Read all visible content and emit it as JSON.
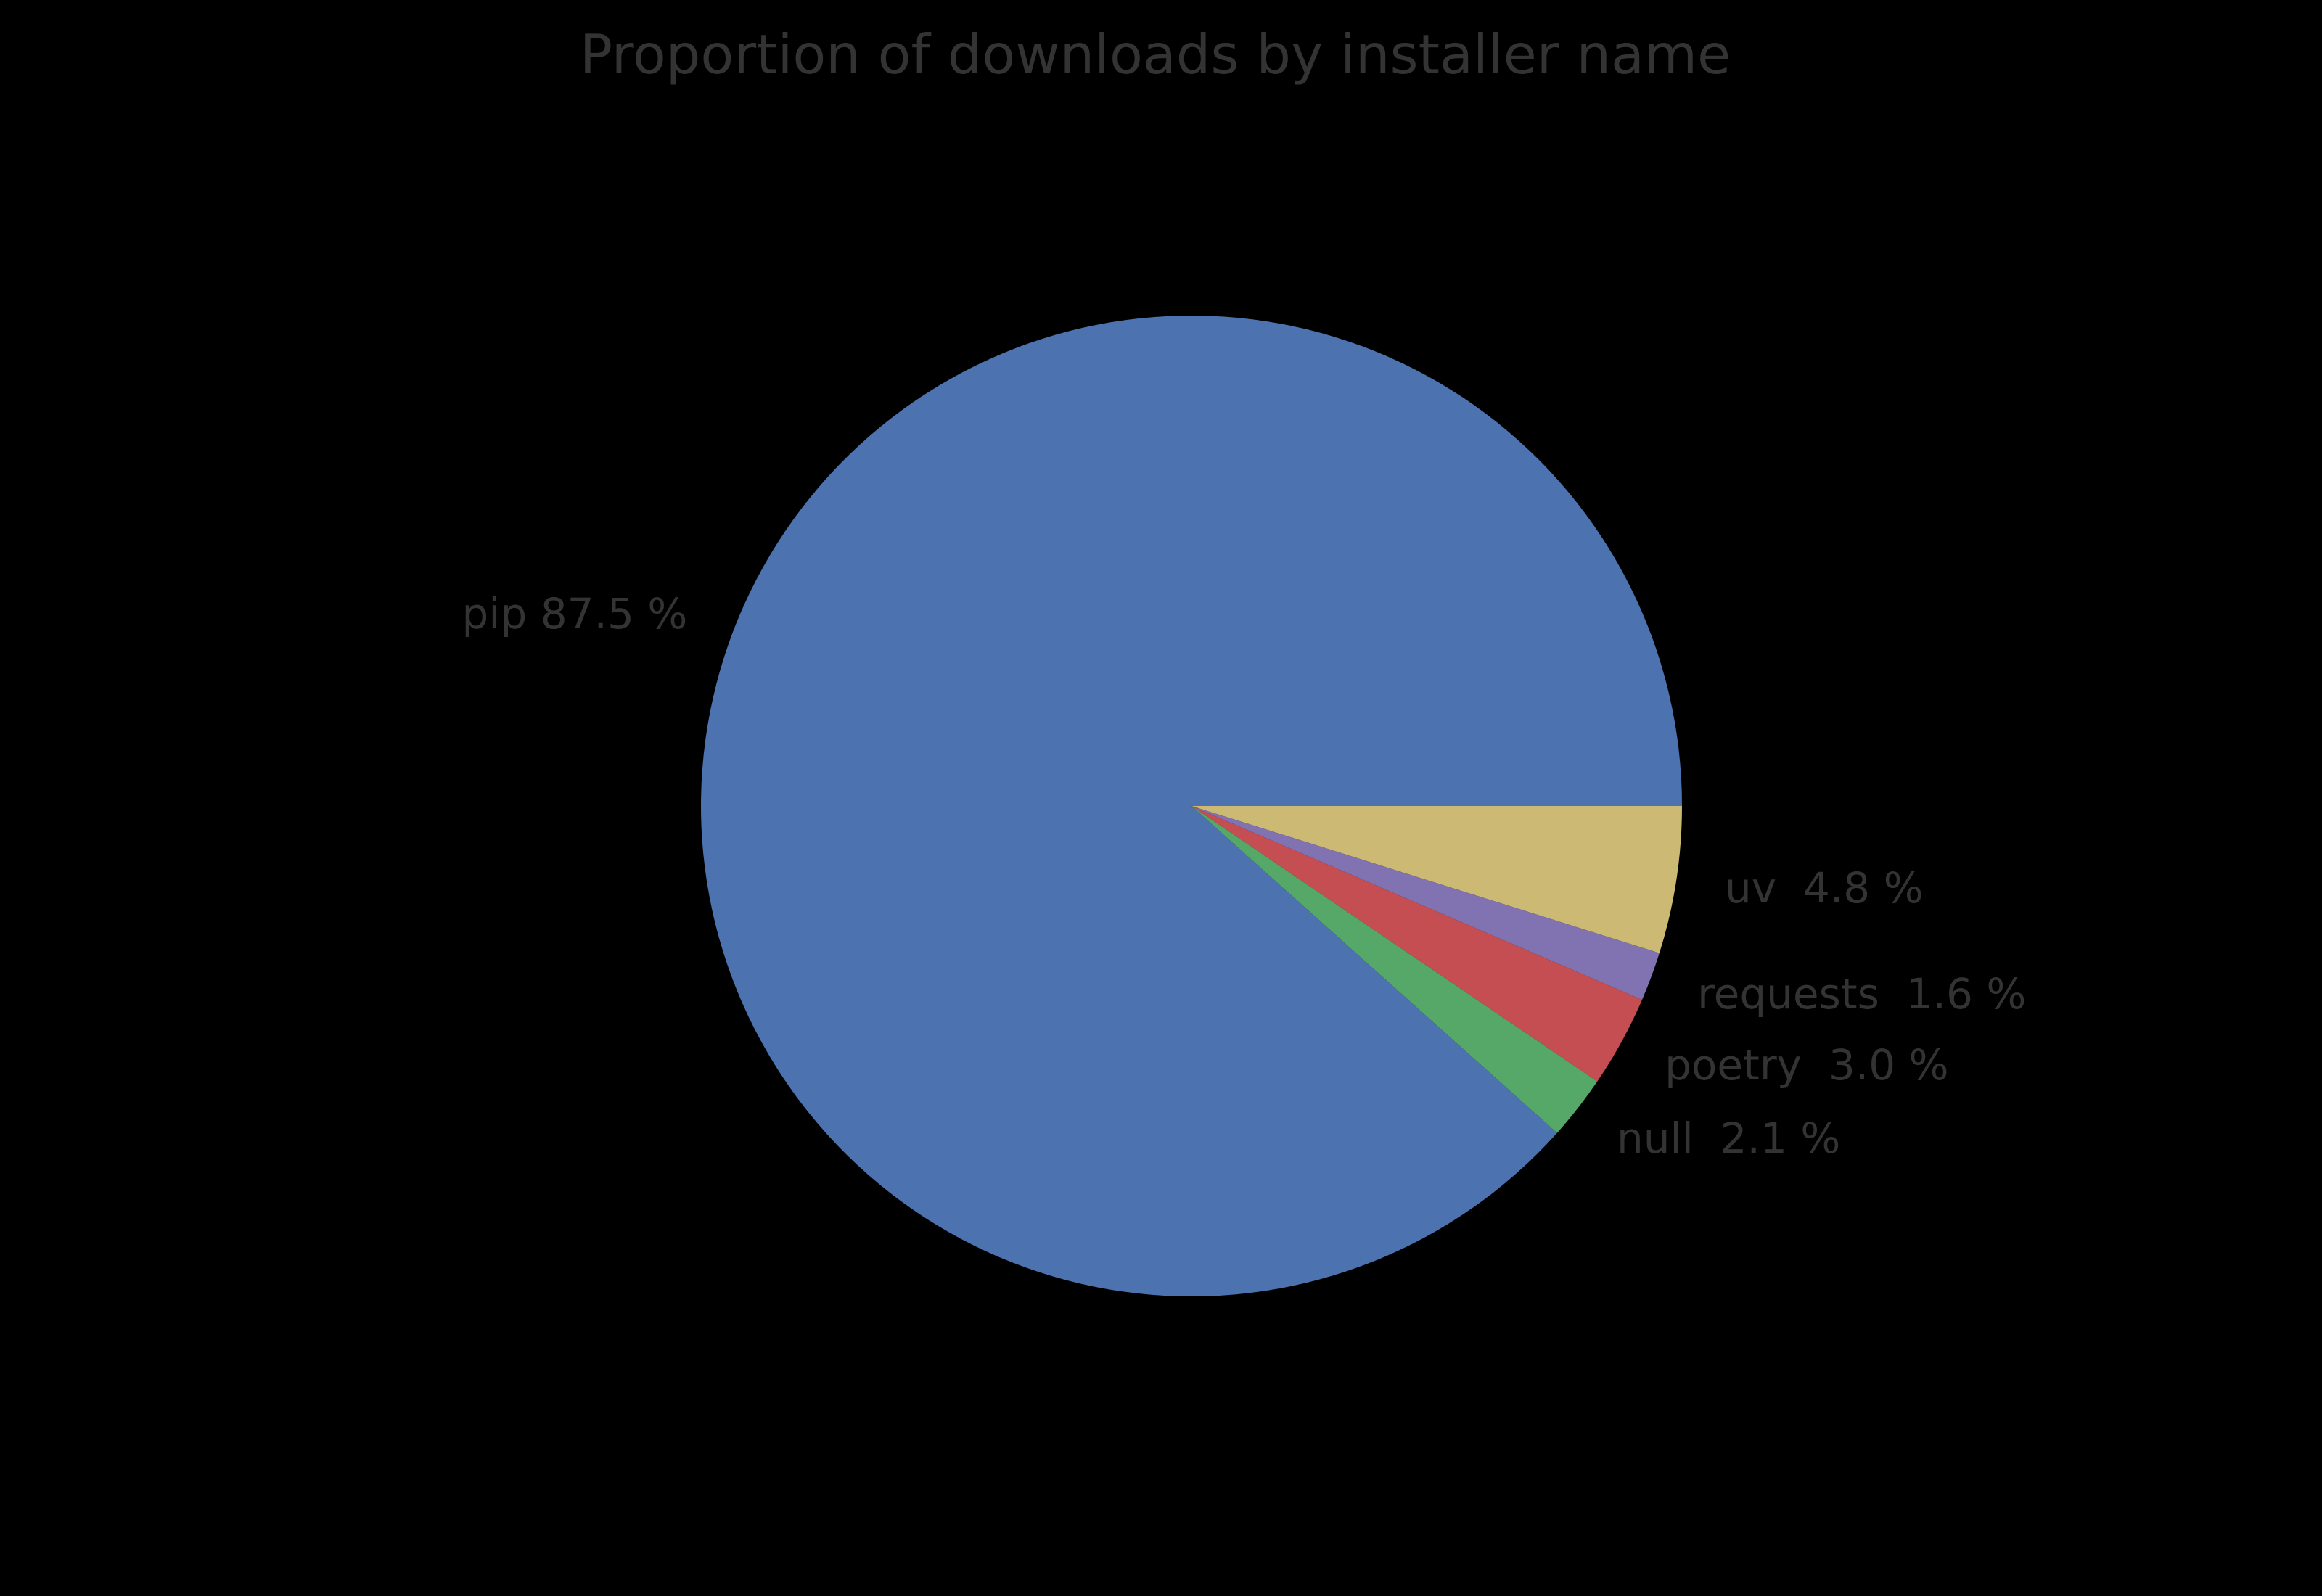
{
  "chart_data": {
    "type": "pie",
    "title": "Proportion of downloads by installer name",
    "unit": "%",
    "slices": [
      {
        "label": "pip",
        "value": 87.5,
        "display": "pip 87.5 %",
        "color": "#4c72b0"
      },
      {
        "label": "uv",
        "value": 4.8,
        "display": "uv  4.8 %",
        "color": "#ccb974"
      },
      {
        "label": "requests",
        "value": 1.6,
        "display": "requests  1.6 %",
        "color": "#8172b2"
      },
      {
        "label": "poetry",
        "value": 3.0,
        "display": "poetry  3.0 %",
        "color": "#c44e52"
      },
      {
        "label": "null",
        "value": 2.1,
        "display": "null  2.1 %",
        "color": "#55a868"
      }
    ],
    "values_sum": 99.0,
    "normalized": true,
    "start_angle_deg": 0,
    "direction": "clockwise-from-3-oclock",
    "draw_order": [
      "uv",
      "requests",
      "poetry",
      "null",
      "pip"
    ],
    "label_distance": 1.1,
    "legend": "none",
    "grid": "off",
    "background_color": "#000000",
    "text_color": "#333333"
  }
}
